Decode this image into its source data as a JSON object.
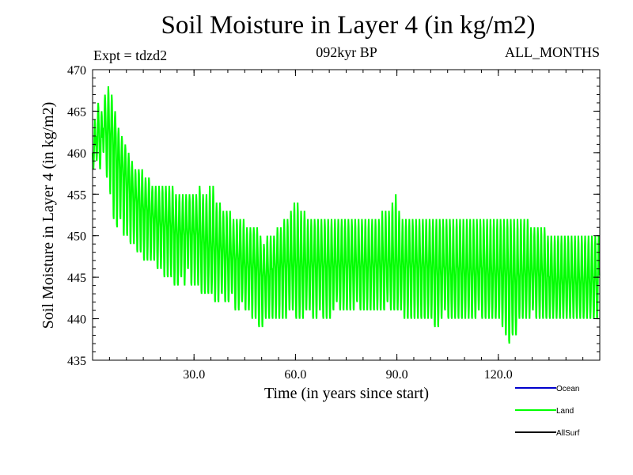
{
  "chart_data": {
    "type": "line",
    "title": "Soil Moisture in Layer 4 (in kg/m2)",
    "experiment": "Expt = tdzd2",
    "subtitle": "092kyr BP",
    "period": "ALL_MONTHS",
    "xlabel": "Time (in years since start)",
    "ylabel": "Soil Moisture in Layer 4 (in kg/m2)",
    "xlim": [
      0,
      150
    ],
    "ylim": [
      435,
      470
    ],
    "xticks": [
      30,
      60,
      90,
      120
    ],
    "xtick_labels": [
      "30.0",
      "60.0",
      "90.0",
      "120.0"
    ],
    "yticks": [
      435,
      440,
      445,
      450,
      455,
      460,
      465,
      470
    ],
    "ytick_labels": [
      "435",
      "440",
      "445",
      "450",
      "455",
      "460",
      "465",
      "470"
    ],
    "legend": [
      {
        "name": "Ocean",
        "color": "#0000cc"
      },
      {
        "name": "Land",
        "color": "#00ff00"
      },
      {
        "name": "AllSurf",
        "color": "#000000"
      }
    ],
    "series": [
      {
        "name": "Land",
        "color": "#00ff00",
        "x_start": 0,
        "x_step": 1,
        "values_min": [
          458,
          459,
          458,
          460,
          457,
          455,
          452,
          451,
          452,
          450,
          450,
          449,
          449,
          448,
          448,
          447,
          447,
          447,
          447,
          446,
          446,
          445,
          445,
          445,
          444,
          444,
          445,
          444,
          446,
          444,
          444,
          444,
          443,
          443,
          443,
          443,
          442,
          442,
          443,
          442,
          442,
          443,
          441,
          441,
          442,
          441,
          441,
          440,
          440,
          439,
          439,
          440,
          440,
          440,
          440,
          440,
          440,
          440,
          441,
          441,
          440,
          440,
          440,
          441,
          441,
          440,
          440,
          441,
          440,
          440,
          440,
          441,
          442,
          441,
          441,
          441,
          441,
          441,
          442,
          441,
          441,
          441,
          441,
          441,
          441,
          441,
          441,
          442,
          441,
          441,
          441,
          441,
          440,
          440,
          440,
          440,
          440,
          440,
          440,
          440,
          440,
          439,
          439,
          440,
          441,
          440,
          440,
          440,
          440,
          440,
          440,
          440,
          440,
          440,
          441,
          440,
          440,
          440,
          440,
          440,
          440,
          439,
          438,
          437,
          438,
          438,
          440,
          440,
          440,
          440,
          441,
          440,
          440,
          440,
          440,
          440,
          440,
          440,
          440,
          440,
          440,
          440,
          440,
          440,
          440,
          440,
          440,
          440,
          440,
          440
        ],
        "values": [
          460,
          462,
          461,
          463,
          462,
          462,
          461,
          459,
          458,
          457,
          456,
          455,
          454,
          454,
          453,
          453,
          453,
          452,
          452,
          451,
          451,
          451,
          451,
          451,
          450,
          450,
          450,
          450,
          450,
          450,
          450,
          450,
          449,
          449,
          448,
          448,
          448,
          448,
          448,
          447,
          447,
          447,
          447,
          447,
          446,
          446,
          446,
          446,
          446,
          445,
          445,
          445,
          445,
          446,
          446,
          446,
          446,
          446,
          446,
          446,
          446,
          446,
          446,
          446,
          446,
          446,
          446,
          446,
          446,
          446,
          446,
          446,
          446,
          446,
          446,
          446,
          446,
          446,
          446,
          446,
          446,
          446,
          446,
          446,
          446,
          446,
          446,
          446,
          446,
          446,
          446,
          446,
          446,
          446,
          446,
          446,
          446,
          446,
          446,
          446,
          446,
          445,
          445,
          445,
          446,
          445,
          445,
          445,
          446,
          445,
          445,
          445,
          445,
          445,
          445,
          446,
          445,
          445,
          445,
          445,
          445,
          445,
          445,
          445,
          444,
          444,
          445,
          445,
          445,
          445,
          445,
          445,
          445,
          445,
          444,
          445,
          444,
          444,
          444,
          444,
          444,
          444,
          444,
          444,
          444,
          444,
          444,
          444,
          444,
          444
        ],
        "values_max": [
          464,
          466,
          465,
          467,
          468,
          467,
          465,
          463,
          462,
          461,
          460,
          459,
          458,
          458,
          458,
          457,
          457,
          456,
          456,
          456,
          456,
          456,
          456,
          456,
          455,
          455,
          455,
          455,
          455,
          455,
          455,
          456,
          455,
          455,
          456,
          456,
          454,
          454,
          453,
          453,
          453,
          452,
          452,
          452,
          452,
          451,
          451,
          451,
          451,
          450,
          449,
          450,
          450,
          450,
          451,
          451,
          452,
          452,
          453,
          454,
          454,
          453,
          453,
          452,
          452,
          452,
          452,
          452,
          452,
          452,
          452,
          452,
          452,
          452,
          452,
          452,
          452,
          452,
          452,
          452,
          452,
          452,
          452,
          452,
          452,
          453,
          453,
          453,
          454,
          455,
          453,
          452,
          452,
          452,
          452,
          452,
          452,
          452,
          452,
          452,
          452,
          452,
          452,
          452,
          452,
          452,
          452,
          452,
          452,
          452,
          452,
          452,
          452,
          452,
          452,
          452,
          452,
          452,
          452,
          452,
          452,
          452,
          452,
          452,
          452,
          452,
          452,
          452,
          452,
          451,
          451,
          451,
          451,
          451,
          450,
          450,
          450,
          450,
          450,
          450,
          450,
          450,
          450,
          450,
          450,
          450,
          450,
          450,
          450,
          450
        ]
      }
    ]
  }
}
